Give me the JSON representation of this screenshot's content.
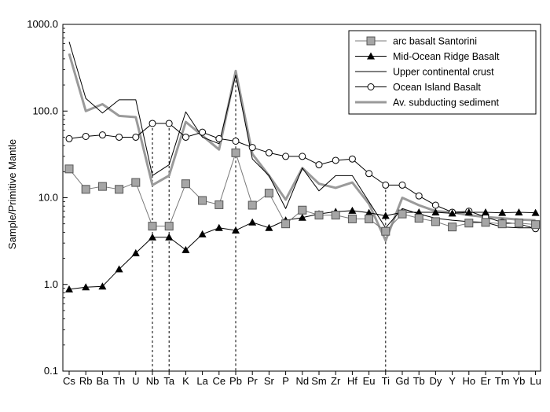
{
  "chart_data": {
    "type": "line",
    "log_y": true,
    "ylabel": "Sample/Primitive Mantle",
    "xlabel": "",
    "ylim": [
      0.1,
      1000
    ],
    "y_ticks": [
      "0.1",
      "1.0",
      "10.0",
      "100.0",
      "1000.0"
    ],
    "categories": [
      "Cs",
      "Rb",
      "Ba",
      "Th",
      "U",
      "Nb",
      "Ta",
      "K",
      "La",
      "Ce",
      "Pb",
      "Pr",
      "Sr",
      "P",
      "Nd",
      "Sm",
      "Zr",
      "Hf",
      "Eu",
      "Ti",
      "Gd",
      "Tb",
      "Dy",
      "Y",
      "Ho",
      "Er",
      "Tm",
      "Yb",
      "Lu"
    ],
    "reference_lines": [
      "Nb",
      "Ta",
      "Pb",
      "Ti"
    ],
    "legend_position": "top-right",
    "series": [
      {
        "name": "arc basalt Santorini",
        "marker": "square",
        "color": "#888888",
        "values": [
          21.5,
          12.5,
          13.5,
          12.5,
          15,
          4.7,
          4.7,
          14.5,
          9.3,
          8.3,
          33,
          8.2,
          11.3,
          5,
          7.2,
          6.3,
          6.3,
          5.7,
          5.7,
          4.1,
          6.5,
          5.8,
          5.3,
          4.6,
          5.1,
          5.2,
          5.0,
          5.1,
          4.9
        ]
      },
      {
        "name": "Mid-Ocean Ridge Basalt",
        "marker": "triangle",
        "color": "#000000",
        "values": [
          0.88,
          0.93,
          0.95,
          1.5,
          2.3,
          3.5,
          3.5,
          2.5,
          3.8,
          4.5,
          4.2,
          5.2,
          4.5,
          5.5,
          5.9,
          6.5,
          6.9,
          7.1,
          6.7,
          6.2,
          6.8,
          6.8,
          6.8,
          6.6,
          6.8,
          6.8,
          6.7,
          6.8,
          6.7
        ]
      },
      {
        "name": "Upper continental crust",
        "marker": "none",
        "color": "#000000",
        "values": [
          630,
          140,
          95,
          135,
          135,
          18,
          24,
          98,
          50,
          42,
          260,
          28,
          18,
          7.5,
          22,
          12,
          18,
          18,
          9,
          4.5,
          7.5,
          6.5,
          5.8,
          5.5,
          5.3,
          5.2,
          4.6,
          4.5,
          4.5
        ]
      },
      {
        "name": "Ocean Island Basalt",
        "marker": "circle",
        "color": "#000000",
        "values": [
          48,
          51,
          53,
          50,
          50,
          72,
          72,
          50,
          57,
          48,
          45,
          38,
          33,
          30,
          30,
          24,
          27,
          28,
          19,
          14,
          14,
          10.5,
          8.2,
          6.8,
          7,
          6,
          5.2,
          5,
          4.4
        ]
      },
      {
        "name": "Av. subducting sediment",
        "marker": "none",
        "color": "#999999",
        "values": [
          460,
          100,
          120,
          88,
          85,
          14,
          18,
          75,
          52,
          36,
          290,
          32,
          18,
          9.5,
          22,
          14.5,
          13,
          15,
          8.5,
          3.2,
          10,
          8.2,
          7,
          6.8,
          6.3,
          6,
          5.8,
          5.6,
          5.5
        ]
      }
    ]
  }
}
